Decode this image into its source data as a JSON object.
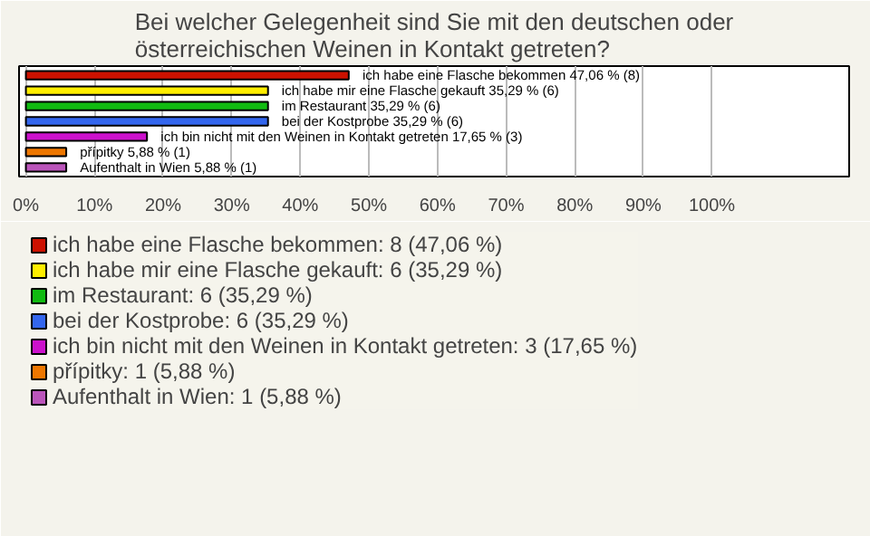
{
  "chart_data": {
    "type": "bar",
    "orientation": "horizontal",
    "title": "Bei welcher Gelegenheit sind Sie mit den deutschen oder österreichischen Weinen in Kontakt getreten?",
    "categories": [
      null,
      null,
      null,
      null,
      null,
      null,
      null
    ],
    "series": [
      {
        "name": "ich habe eine Flasche bekommen: 8 (47,06 %)",
        "color": "#cc1100",
        "values": [
          47.06,
          null,
          null,
          null,
          null,
          null,
          null
        ],
        "value_labels": [
          "ich habe eine Flasche bekommen 47,06 % (8)",
          null,
          null,
          null,
          null,
          null,
          null
        ]
      },
      {
        "name": "ich habe mir eine Flasche gekauft: 6 (35,29 %)",
        "color": "#ffee00",
        "values": [
          null,
          35.29,
          null,
          null,
          null,
          null,
          null
        ],
        "value_labels": [
          null,
          "ich habe mir eine Flasche gekauft 35,29 % (6)",
          null,
          null,
          null,
          null,
          null
        ]
      },
      {
        "name": "im Restaurant: 6 (35,29 %)",
        "color": "#11bb11",
        "values": [
          null,
          null,
          35.29,
          null,
          null,
          null,
          null
        ],
        "value_labels": [
          null,
          null,
          "im Restaurant 35,29 % (6)",
          null,
          null,
          null,
          null
        ]
      },
      {
        "name": "bei der Kostprobe: 6 (35,29 %)",
        "color": "#3366ee",
        "values": [
          null,
          null,
          null,
          35.29,
          null,
          null,
          null
        ],
        "value_labels": [
          null,
          null,
          null,
          "bei der Kostprobe 35,29 % (6)",
          null,
          null,
          null
        ]
      },
      {
        "name": "ich bin nicht mit den Weinen in Kontakt getreten: 3 (17,65 %)",
        "color": "#cc11cc",
        "values": [
          null,
          null,
          null,
          null,
          17.65,
          null,
          null
        ],
        "value_labels": [
          null,
          null,
          null,
          null,
          "ich bin nicht mit den Weinen in Kontakt getreten 17,65 % (3)",
          null,
          null
        ]
      },
      {
        "name": "přípitky: 1 (5,88 %)",
        "color": "#ee7700",
        "values": [
          null,
          null,
          null,
          null,
          null,
          5.88,
          null
        ],
        "value_labels": [
          null,
          null,
          null,
          null,
          null,
          "přípitky 5,88 % (1)",
          null
        ]
      },
      {
        "name": "Aufenthalt in Wien: 1 (5,88 %)",
        "color": "#bb55bb",
        "values": [
          null,
          null,
          null,
          null,
          null,
          null,
          5.88
        ],
        "value_labels": [
          null,
          null,
          null,
          null,
          null,
          null,
          "Aufenthalt in Wien 5,88 % (1)"
        ]
      }
    ],
    "xlim": [
      -1,
      120
    ],
    "xticks": [
      {
        "value": 0,
        "label": "0%"
      },
      {
        "value": 10,
        "label": "10%"
      },
      {
        "value": 20,
        "label": "20%"
      },
      {
        "value": 30,
        "label": "30%"
      },
      {
        "value": 40,
        "label": "40%"
      },
      {
        "value": 50,
        "label": "50%"
      },
      {
        "value": 60,
        "label": "60%"
      },
      {
        "value": 70,
        "label": "70%"
      },
      {
        "value": 80,
        "label": "80%"
      },
      {
        "value": 90,
        "label": "90%"
      },
      {
        "value": 100,
        "label": "100%"
      }
    ],
    "grid": "x",
    "legend": "bottom"
  }
}
